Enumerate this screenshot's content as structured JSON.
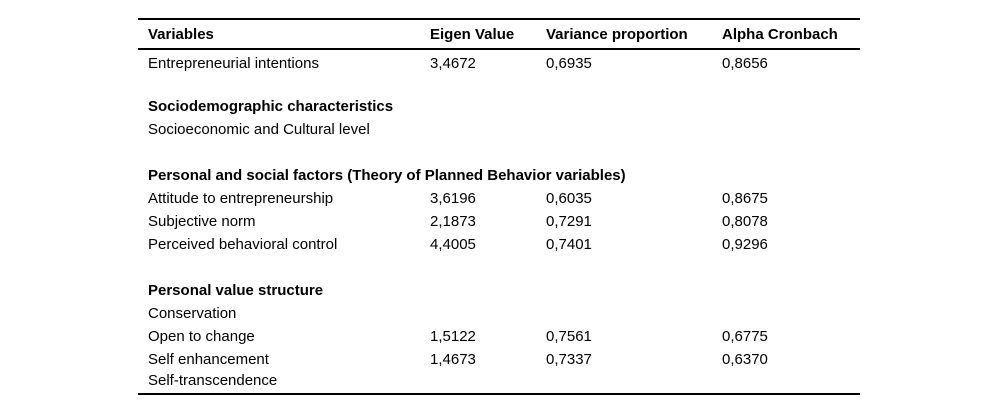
{
  "page": {
    "background_color": "#ffffff",
    "text_color": "#000000",
    "rule_color": "#000000"
  },
  "table": {
    "columns": [
      "Variables",
      "Eigen Value",
      "Variance proportion",
      "Alpha Cronbach"
    ],
    "rows": [
      {
        "variable": "Entrepreneurial intentions",
        "eigen_value": "3,4672",
        "variance_proportion": "0,6935",
        "alpha_cronbach": "0,8656",
        "bold": false
      },
      {
        "variable": "",
        "eigen_value": "",
        "variance_proportion": "",
        "alpha_cronbach": "",
        "bold": false
      },
      {
        "variable": "Sociodemographic characteristics",
        "eigen_value": "",
        "variance_proportion": "",
        "alpha_cronbach": "",
        "bold": true
      },
      {
        "variable": "Socioeconomic and Cultural level",
        "eigen_value": "",
        "variance_proportion": "",
        "alpha_cronbach": "",
        "bold": false
      },
      {
        "variable": "",
        "eigen_value": "",
        "variance_proportion": "",
        "alpha_cronbach": "",
        "bold": false
      },
      {
        "variable": "Personal and social factors (Theory of Planned Behavior variables)",
        "eigen_value": "",
        "variance_proportion": "",
        "alpha_cronbach": "",
        "bold": true
      },
      {
        "variable": "Attitude to entrepreneurship",
        "eigen_value": "3,6196",
        "variance_proportion": "0,6035",
        "alpha_cronbach": "0,8675",
        "bold": false
      },
      {
        "variable": "Subjective norm",
        "eigen_value": "2,1873",
        "variance_proportion": "0,7291",
        "alpha_cronbach": "0,8078",
        "bold": false
      },
      {
        "variable": "Perceived behavioral control",
        "eigen_value": "4,4005",
        "variance_proportion": "0,7401",
        "alpha_cronbach": "0,9296",
        "bold": false
      },
      {
        "variable": "",
        "eigen_value": "",
        "variance_proportion": "",
        "alpha_cronbach": "",
        "bold": false
      },
      {
        "variable": "Personal value structure",
        "eigen_value": "",
        "variance_proportion": "",
        "alpha_cronbach": "",
        "bold": true
      },
      {
        "variable": "Conservation",
        "eigen_value": "",
        "variance_proportion": "",
        "alpha_cronbach": "",
        "bold": false
      },
      {
        "variable": "Open to change",
        "eigen_value": "1,5122",
        "variance_proportion": "0,7561",
        "alpha_cronbach": "0,6775",
        "bold": false
      },
      {
        "variable": "Self enhancement",
        "eigen_value": "1,4673",
        "variance_proportion": "0,7337",
        "alpha_cronbach": "0,6370",
        "bold": false
      },
      {
        "variable": "Self-transcendence",
        "eigen_value": "",
        "variance_proportion": "",
        "alpha_cronbach": "",
        "bold": false
      }
    ]
  }
}
